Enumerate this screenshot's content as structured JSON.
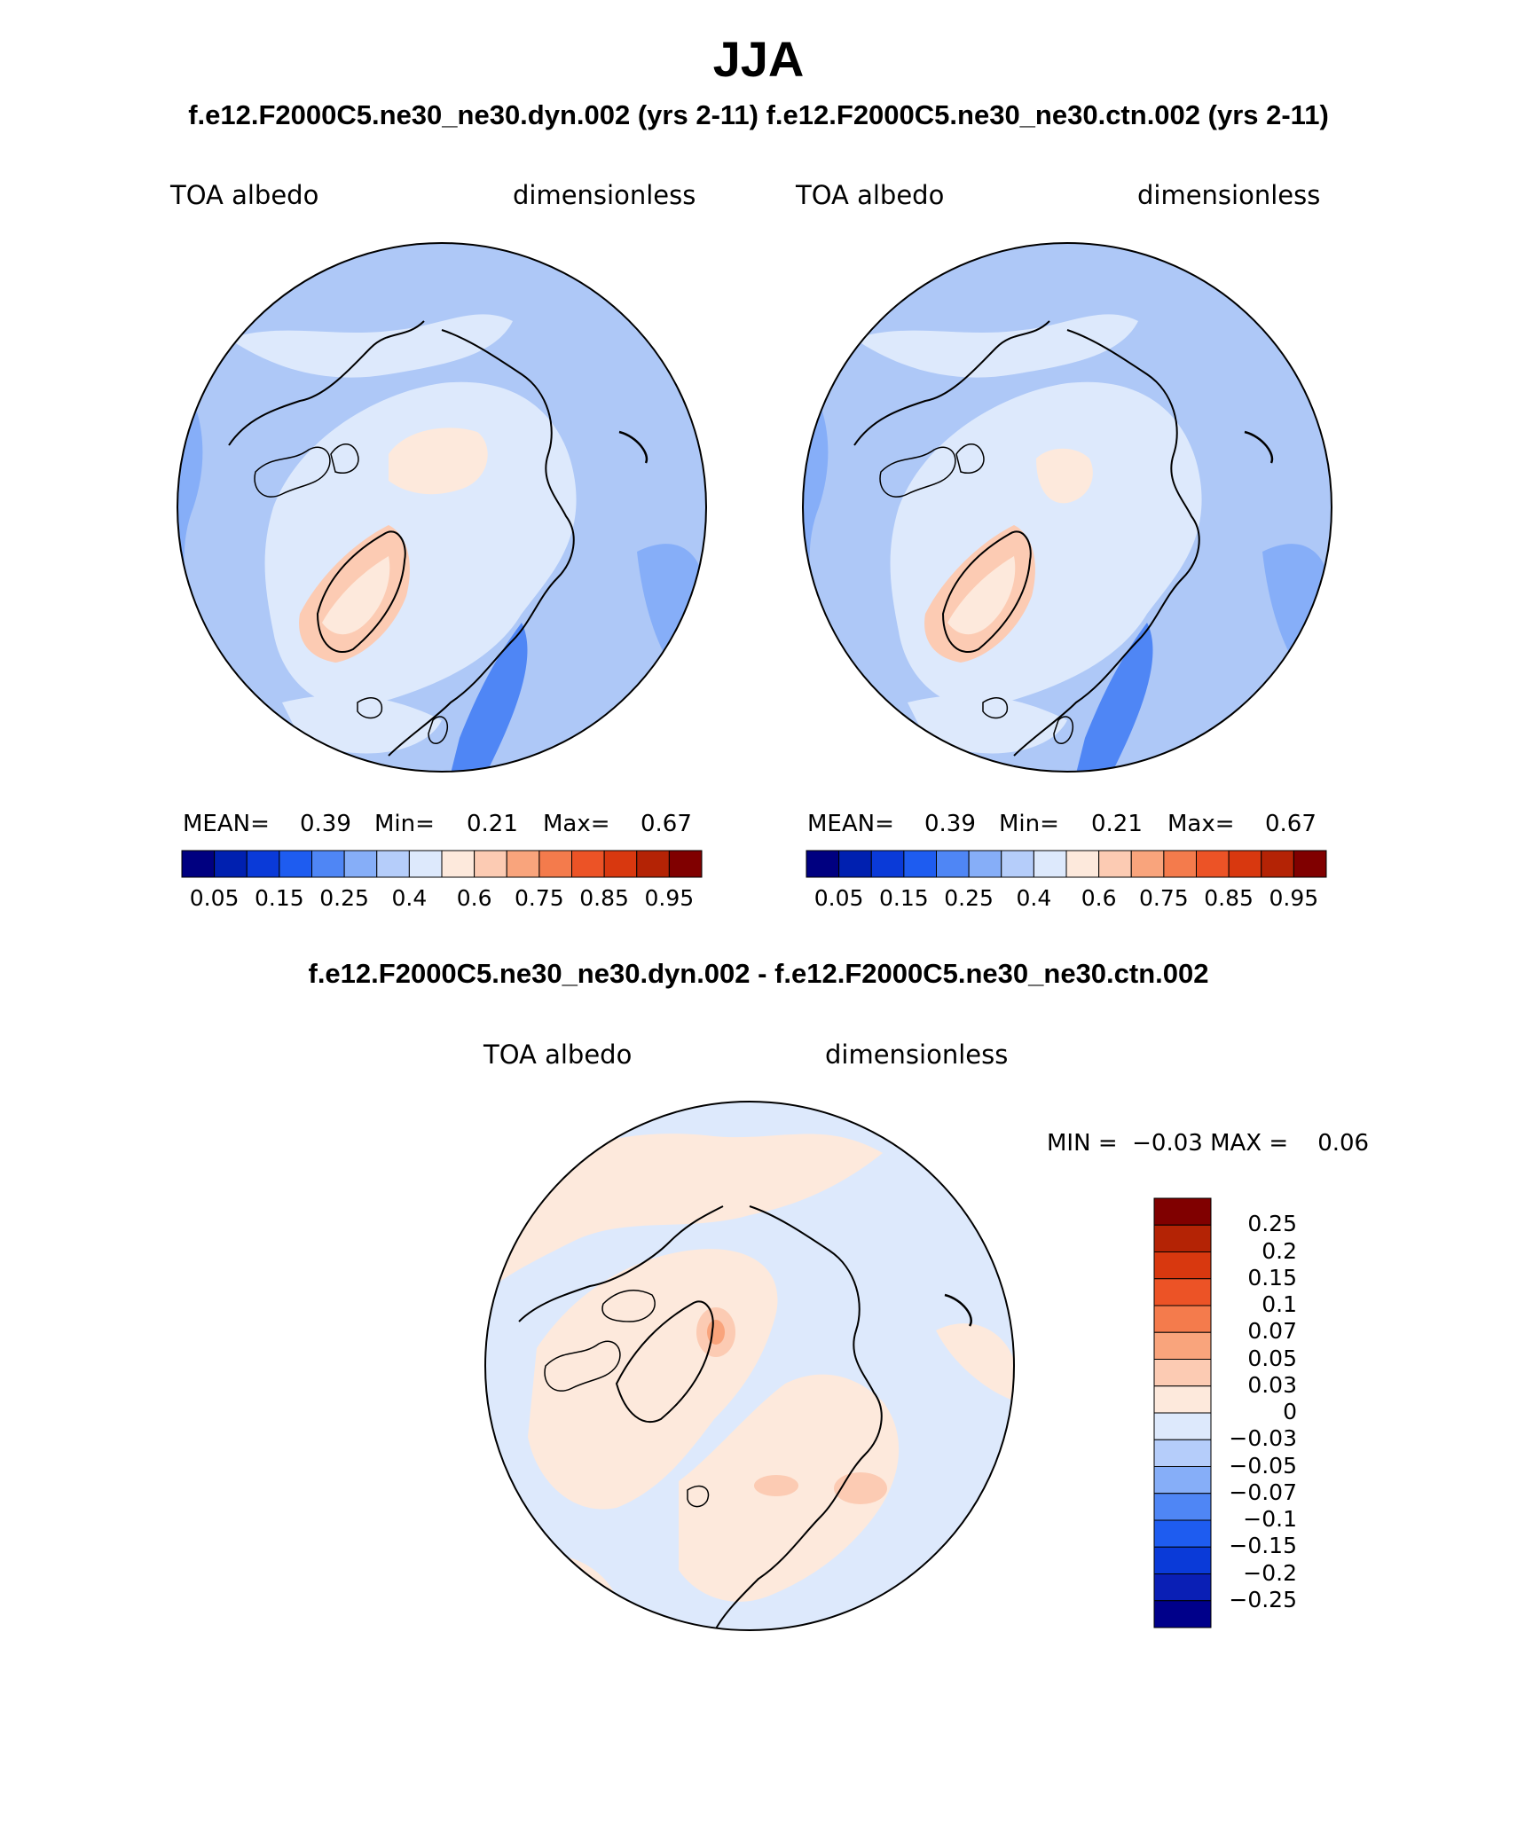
{
  "title": "JJA",
  "subtitle_top": "f.e12.F2000C5.ne30_ne30.dyn.002 (yrs 2-11)  f.e12.F2000C5.ne30_ne30.ctn.002 (yrs 2-11)",
  "subtitle_diff": "f.e12.F2000C5.ne30_ne30.dyn.002 - f.e12.F2000C5.ne30_ne30.ctn.002",
  "panels": [
    {
      "variable": "TOA albedo",
      "units": "dimensionless",
      "stats": {
        "mean_label": "MEAN=",
        "mean": "0.39",
        "min_label": "Min=",
        "min": "0.21",
        "max_label": "Max=",
        "max": "0.67"
      },
      "colorbar_ticks": [
        "0.05",
        "0.15",
        "0.25",
        "0.4",
        "0.6",
        "0.75",
        "0.85",
        "0.95"
      ]
    },
    {
      "variable": "TOA albedo",
      "units": "dimensionless",
      "stats": {
        "mean_label": "MEAN=",
        "mean": "0.39",
        "min_label": "Min=",
        "min": "0.21",
        "max_label": "Max=",
        "max": "0.67"
      },
      "colorbar_ticks": [
        "0.05",
        "0.15",
        "0.25",
        "0.4",
        "0.6",
        "0.75",
        "0.85",
        "0.95"
      ]
    }
  ],
  "diff_panel": {
    "variable": "TOA albedo",
    "units": "dimensionless",
    "min_max_text": "MIN =  −0.03 MAX =    0.06",
    "colorbar_ticks": [
      "0.25",
      "0.2",
      "0.15",
      "0.1",
      "0.07",
      "0.05",
      "0.03",
      "0",
      "−0.03",
      "−0.05",
      "−0.07",
      "−0.1",
      "−0.15",
      "−0.2",
      "−0.25"
    ]
  },
  "colors": {
    "abs_scale": [
      "#000080",
      "#0020b0",
      "#0a3ad8",
      "#1e5cf0",
      "#4f86f5",
      "#86aef8",
      "#b5cdfa",
      "#dde9fc",
      "#fde9dc",
      "#fccbb3",
      "#f9a47c",
      "#f47b4c",
      "#ec5326",
      "#d8380f",
      "#b42305",
      "#800000"
    ],
    "diff_scale": [
      "#00008a",
      "#0a1fb5",
      "#0a3ad8",
      "#1e5cf0",
      "#4f86f5",
      "#86aef8",
      "#b5cdfa",
      "#dde9fc",
      "#fde9dc",
      "#fccbb3",
      "#f9a47c",
      "#f47b4c",
      "#ec5326",
      "#d8380f",
      "#b42305",
      "#800000"
    ],
    "ocean_abs": "#aec8f7",
    "ocean_diff": "#dde9fc",
    "land_diff": "#fde9dc"
  }
}
